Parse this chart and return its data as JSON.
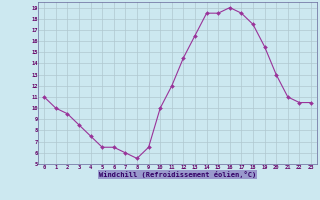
{
  "x": [
    0,
    1,
    2,
    3,
    4,
    5,
    6,
    7,
    8,
    9,
    10,
    11,
    12,
    13,
    14,
    15,
    16,
    17,
    18,
    19,
    20,
    21,
    22,
    23
  ],
  "y": [
    11,
    10,
    9.5,
    8.5,
    7.5,
    6.5,
    6.5,
    6.0,
    5.5,
    6.5,
    10.0,
    12.0,
    14.5,
    16.5,
    18.5,
    18.5,
    19.0,
    18.5,
    17.5,
    15.5,
    13.0,
    11.0,
    10.5,
    10.5
  ],
  "xlabel": "Windchill (Refroidissement éolien,°C)",
  "ylim": [
    5,
    19.5
  ],
  "xlim": [
    -0.5,
    23.5
  ],
  "yticks": [
    5,
    6,
    7,
    8,
    9,
    10,
    11,
    12,
    13,
    14,
    15,
    16,
    17,
    18,
    19
  ],
  "xticks": [
    0,
    1,
    2,
    3,
    4,
    5,
    6,
    7,
    8,
    9,
    10,
    11,
    12,
    13,
    14,
    15,
    16,
    17,
    18,
    19,
    20,
    21,
    22,
    23
  ],
  "line_color": "#993399",
  "marker_color": "#993399",
  "bg_color": "#cce8f0",
  "grid_color": "#b0c8d0",
  "xlabel_color": "#330066",
  "xlabel_bg": "#9999cc",
  "tick_label_color": "#660066"
}
